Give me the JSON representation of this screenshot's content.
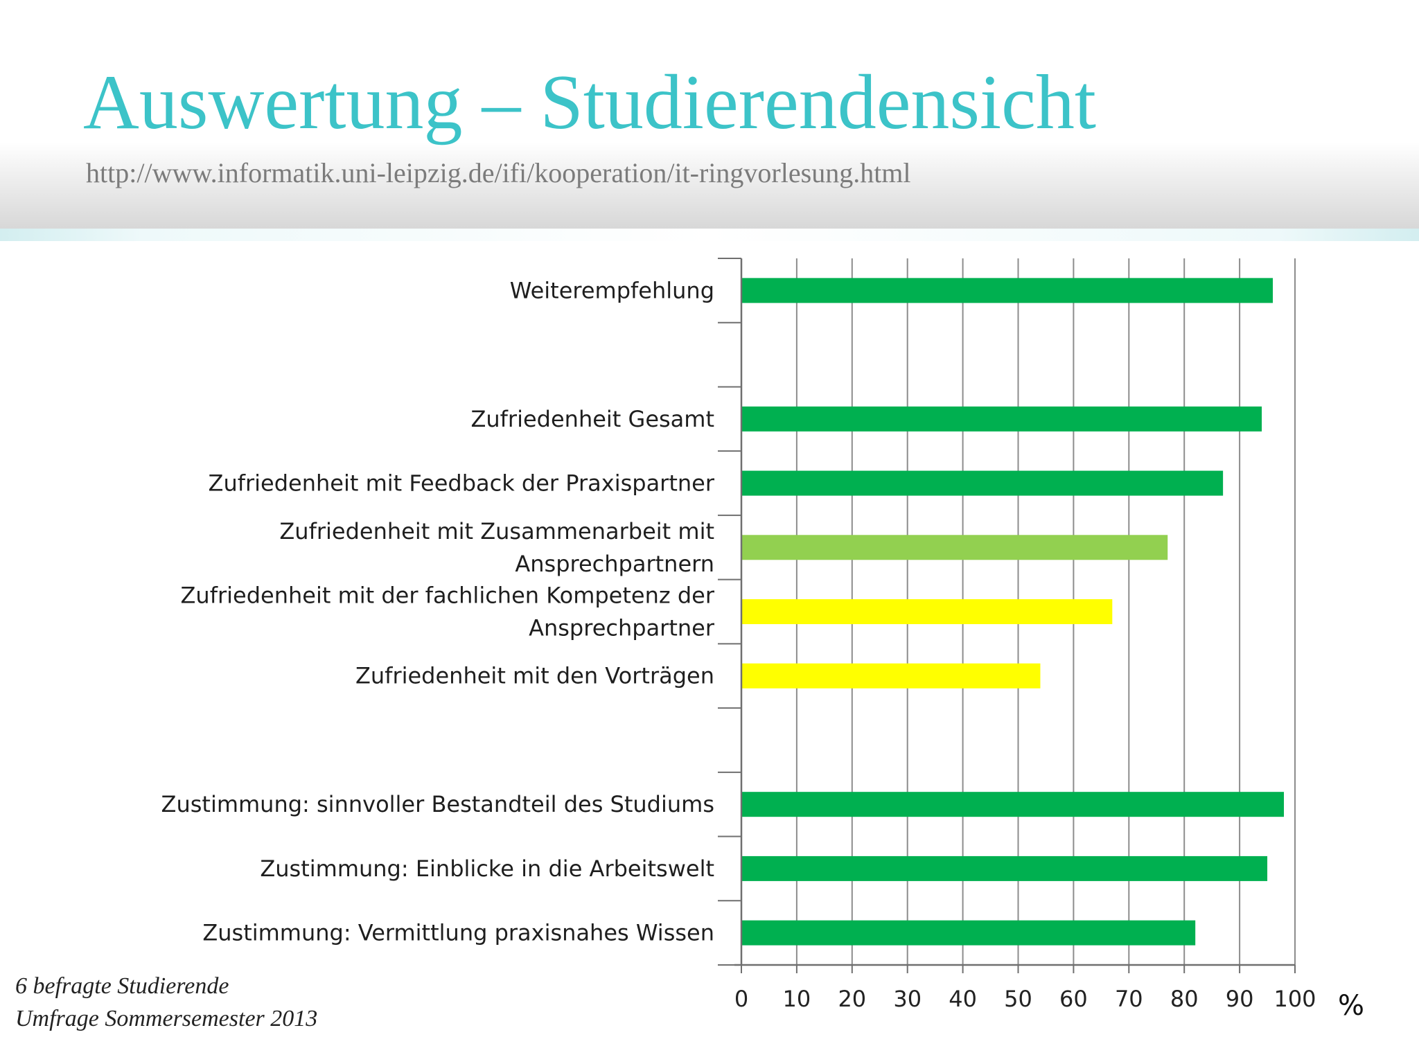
{
  "slide": {
    "title": "Auswertung – Studierendensicht",
    "url": "http://www.informatik.uni-leipzig.de/ifi/kooperation/it-ringvorlesung.html",
    "footnote_line1": "6 befragte Studierende",
    "footnote_line2": "Umfrage Sommersemester 2013"
  },
  "chart_data": {
    "type": "bar",
    "orientation": "horizontal",
    "title": "",
    "xlabel": "%",
    "ylabel": "",
    "xlim": [
      0,
      100
    ],
    "xticks": [
      0,
      10,
      20,
      30,
      40,
      50,
      60,
      70,
      80,
      90,
      100
    ],
    "grid": "vertical",
    "legend": "none",
    "categories": [
      {
        "label": [
          "Weiterempfehlung"
        ],
        "value": 96,
        "color": "#00b050"
      },
      {
        "label": [],
        "value": null,
        "color": null
      },
      {
        "label": [
          "Zufriedenheit Gesamt"
        ],
        "value": 94,
        "color": "#00b050"
      },
      {
        "label": [
          "Zufriedenheit mit Feedback der Praxispartner"
        ],
        "value": 87,
        "color": "#00b050"
      },
      {
        "label": [
          "Zufriedenheit mit Zusammenarbeit mit",
          "Ansprechpartnern"
        ],
        "value": 77,
        "color": "#92d050"
      },
      {
        "label": [
          "Zufriedenheit mit der fachlichen Kompetenz der",
          "Ansprechpartner"
        ],
        "value": 67,
        "color": "#ffff00"
      },
      {
        "label": [
          "Zufriedenheit mit den Vorträgen"
        ],
        "value": 54,
        "color": "#ffff00"
      },
      {
        "label": [],
        "value": null,
        "color": null
      },
      {
        "label": [
          "Zustimmung: sinnvoller Bestandteil des Studiums"
        ],
        "value": 98,
        "color": "#00b050"
      },
      {
        "label": [
          "Zustimmung: Einblicke in die Arbeitswelt"
        ],
        "value": 95,
        "color": "#00b050"
      },
      {
        "label": [
          "Zustimmung: Vermittlung praxisnahes Wissen"
        ],
        "value": 82,
        "color": "#00b050"
      }
    ]
  }
}
